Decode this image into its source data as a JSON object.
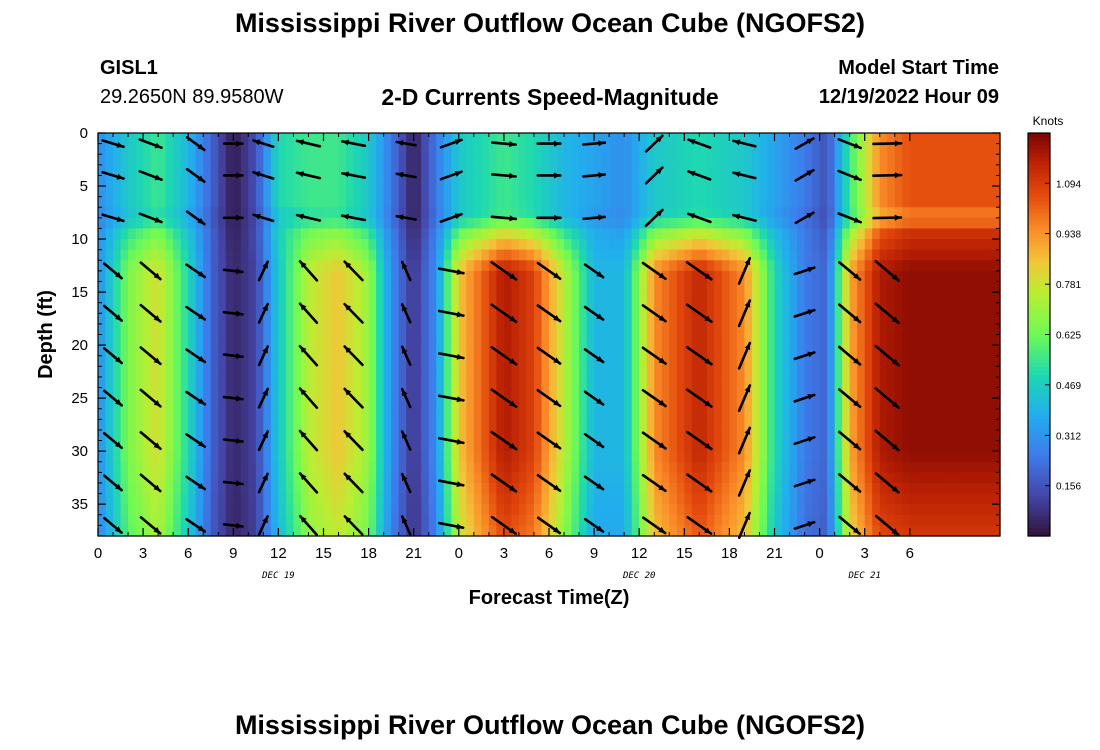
{
  "title": "Mississippi River Outflow Ocean Cube (NGOFS2)",
  "station": {
    "id": "GISL1",
    "coords": "29.2650N  89.9580W"
  },
  "subtitle": "2-D Currents Speed-Magnitude",
  "model_start": {
    "label": "Model Start Time",
    "value": "12/19/2022 Hour 09"
  },
  "second_title": "Mississippi River Outflow Ocean Cube (NGOFS2)",
  "chart_data": {
    "type": "heatmap",
    "title": "2-D Currents Speed-Magnitude",
    "xlabel": "Forecast Time(Z)",
    "ylabel": "Depth (ft)",
    "x_range_hours": [
      0,
      60
    ],
    "ylim": [
      0,
      38
    ],
    "x_tick_labels": [
      "0",
      "3",
      "6",
      "9",
      "12",
      "15",
      "18",
      "21",
      "0",
      "3",
      "6",
      "9",
      "12",
      "15",
      "18",
      "21",
      "0",
      "3",
      "6"
    ],
    "y_ticks": [
      0,
      5,
      10,
      15,
      20,
      25,
      30,
      35
    ],
    "date_labels": [
      {
        "text": "DEC 19",
        "hour": 12
      },
      {
        "text": "DEC 20",
        "hour": 36
      },
      {
        "text": "DEC 21",
        "hour": 51
      }
    ],
    "colorbar": {
      "unit": "Knots",
      "ticks": [
        0.156,
        0.312,
        0.469,
        0.625,
        0.781,
        0.938,
        1.094
      ],
      "range": [
        0.0,
        1.25
      ]
    },
    "surface_layer_depth_ft": 8,
    "speed_profile": [
      {
        "hour": 0,
        "surface": 0.3,
        "deep": 0.3
      },
      {
        "hour": 2,
        "surface": 0.45,
        "deep": 0.65
      },
      {
        "hour": 4,
        "surface": 0.55,
        "deep": 0.8
      },
      {
        "hour": 6,
        "surface": 0.4,
        "deep": 0.5
      },
      {
        "hour": 7.5,
        "surface": 0.2,
        "deep": 0.2
      },
      {
        "hour": 9,
        "surface": 0.02,
        "deep": 0.05
      },
      {
        "hour": 10.5,
        "surface": 0.15,
        "deep": 0.12
      },
      {
        "hour": 12,
        "surface": 0.5,
        "deep": 0.45
      },
      {
        "hour": 14,
        "surface": 0.55,
        "deep": 0.75
      },
      {
        "hour": 16,
        "surface": 0.55,
        "deep": 0.85
      },
      {
        "hour": 18,
        "surface": 0.45,
        "deep": 0.7
      },
      {
        "hour": 19.5,
        "surface": 0.25,
        "deep": 0.3
      },
      {
        "hour": 21,
        "surface": 0.03,
        "deep": 0.08
      },
      {
        "hour": 22.5,
        "surface": 0.25,
        "deep": 0.3
      },
      {
        "hour": 24,
        "surface": 0.45,
        "deep": 0.85
      },
      {
        "hour": 27,
        "surface": 0.55,
        "deep": 1.18
      },
      {
        "hour": 29,
        "surface": 0.5,
        "deep": 1.08
      },
      {
        "hour": 31,
        "surface": 0.4,
        "deep": 0.75
      },
      {
        "hour": 33,
        "surface": 0.35,
        "deep": 0.4
      },
      {
        "hour": 35,
        "surface": 0.3,
        "deep": 0.4
      },
      {
        "hour": 37,
        "surface": 0.45,
        "deep": 0.95
      },
      {
        "hour": 40,
        "surface": 0.5,
        "deep": 1.15
      },
      {
        "hour": 43,
        "surface": 0.45,
        "deep": 0.95
      },
      {
        "hour": 45,
        "surface": 0.35,
        "deep": 0.5
      },
      {
        "hour": 47,
        "surface": 0.25,
        "deep": 0.25
      },
      {
        "hour": 48.5,
        "surface": 0.15,
        "deep": 0.2
      },
      {
        "hour": 50,
        "surface": 0.55,
        "deep": 0.9
      },
      {
        "hour": 52,
        "surface": 0.95,
        "deep": 1.18
      },
      {
        "hour": 54,
        "surface": 1.05,
        "deep": 1.22
      }
    ],
    "vector_columns_hours": [
      1,
      3.5,
      6.5,
      9,
      11,
      14,
      17,
      20.5,
      23.5,
      27,
      30,
      33,
      37,
      40,
      43,
      47,
      50,
      52.5
    ],
    "vector_rows_ft": [
      1,
      4,
      8,
      13,
      17,
      21,
      25,
      29,
      33,
      37
    ],
    "vector_direction_profile": [
      {
        "hour": 0,
        "surface_deg": -15,
        "deep_deg": -40
      },
      {
        "hour": 6,
        "surface_deg": -25,
        "deep_deg": -40
      },
      {
        "hour": 8.5,
        "surface_deg": -80,
        "deep_deg": -10
      },
      {
        "hour": 10,
        "surface_deg": 160,
        "deep_deg": 0
      },
      {
        "hour": 12,
        "surface_deg": 165,
        "deep_deg": 130
      },
      {
        "hour": 18,
        "surface_deg": 170,
        "deep_deg": 135
      },
      {
        "hour": 21,
        "surface_deg": 170,
        "deep_deg": 110
      },
      {
        "hour": 24,
        "surface_deg": -10,
        "deep_deg": -35
      },
      {
        "hour": 33,
        "surface_deg": 5,
        "deep_deg": -35
      },
      {
        "hour": 36,
        "surface_deg": 5,
        "deep_deg": -35
      },
      {
        "hour": 40,
        "surface_deg": 160,
        "deep_deg": -35
      },
      {
        "hour": 45,
        "surface_deg": 170,
        "deep_deg": 135
      },
      {
        "hour": 48,
        "surface_deg": -40,
        "deep_deg": -40
      },
      {
        "hour": 54,
        "surface_deg": 15,
        "deep_deg": -40
      }
    ]
  }
}
